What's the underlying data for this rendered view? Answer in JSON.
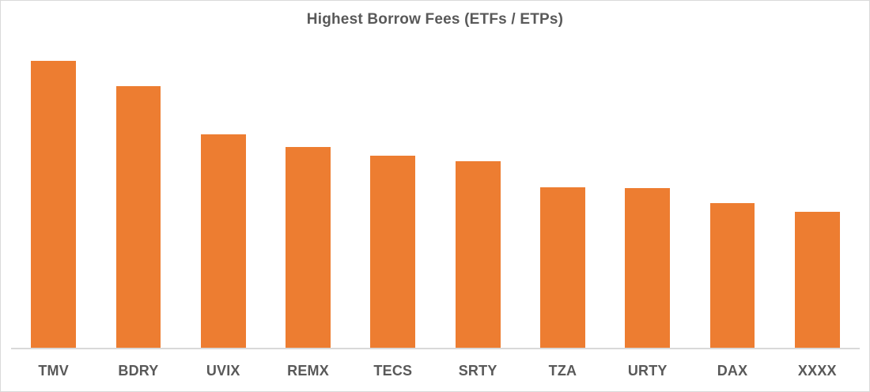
{
  "window": {
    "background": "#ffffff",
    "border_color": "#d9d9d9"
  },
  "chart_data": {
    "type": "bar",
    "title": "Highest Borrow Fees (ETFs / ETPs)",
    "categories": [
      "TMV",
      "BDRY",
      "UVIX",
      "REMX",
      "TECS",
      "SRTY",
      "TZA",
      "URTY",
      "DAX",
      "XXXX"
    ],
    "values": [
      100,
      91.2,
      74.5,
      70.1,
      67.0,
      65.1,
      56.0,
      55.6,
      50.3,
      47.5
    ],
    "value_scale_note": "no value axis, gridlines or data labels shown; values are relative bar heights with tallest bar = 100",
    "xlabel": "",
    "ylabel": "",
    "ylim": [
      0,
      100
    ],
    "grid": false,
    "legend": "none",
    "bar_color": "#ED7D31",
    "title_color": "#595959",
    "category_label_color": "#595959",
    "axis_line_color": "#D9D9D9"
  }
}
